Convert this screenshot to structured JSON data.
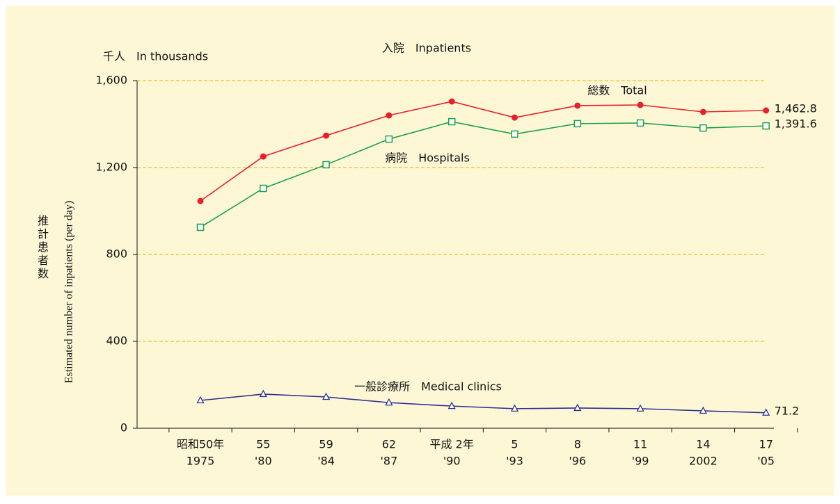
{
  "chart_data": {
    "type": "line",
    "title": "入院　Inpatients",
    "y_unit": "千人　In thousands",
    "y_label": "Estimated number of inpatients (per day)",
    "y_label_ja": "推計患者数",
    "categories": [
      [
        "昭和50年",
        "1975"
      ],
      [
        "55",
        "'80"
      ],
      [
        "59",
        "'84"
      ],
      [
        "62",
        "'87"
      ],
      [
        "平成 2年",
        "'90"
      ],
      [
        "5",
        "'93"
      ],
      [
        "8",
        "'96"
      ],
      [
        "11",
        "'99"
      ],
      [
        "14",
        "2002"
      ],
      [
        "17",
        "'05"
      ]
    ],
    "ylim": [
      0,
      1600
    ],
    "yticks": [
      0,
      {
        "value": 400,
        "label": "400"
      },
      {
        "value": 800,
        "label": "800"
      },
      {
        "value": 1200,
        "label": "1,200"
      },
      {
        "value": 1600,
        "label": "1,600"
      }
    ],
    "grid": true,
    "series": [
      {
        "name": "総数　Total",
        "color": "#e8202a",
        "marker": "circle",
        "values": [
          1046,
          1251,
          1347,
          1440,
          1504,
          1430,
          1485,
          1488,
          1456,
          1462.8
        ],
        "value_labels": [
          null,
          null,
          null,
          null,
          null,
          null,
          null,
          null,
          null,
          "1,462.8"
        ]
      },
      {
        "name": "病院　Hospitals",
        "color": "#1aa24a",
        "marker": "square",
        "values": [
          925,
          1104,
          1213,
          1331,
          1411,
          1354,
          1402,
          1405,
          1382,
          1391.6
        ],
        "value_labels": [
          null,
          null,
          null,
          null,
          null,
          null,
          null,
          null,
          null,
          "1,391.6"
        ]
      },
      {
        "name": "一般診療所　Medical clinics",
        "color": "#2b2f8f",
        "marker": "triangle",
        "values": [
          128,
          157,
          144,
          118,
          102,
          90,
          93,
          90,
          80,
          71.2
        ],
        "value_labels": [
          null,
          null,
          null,
          null,
          null,
          null,
          null,
          null,
          null,
          "71.2"
        ]
      }
    ]
  }
}
